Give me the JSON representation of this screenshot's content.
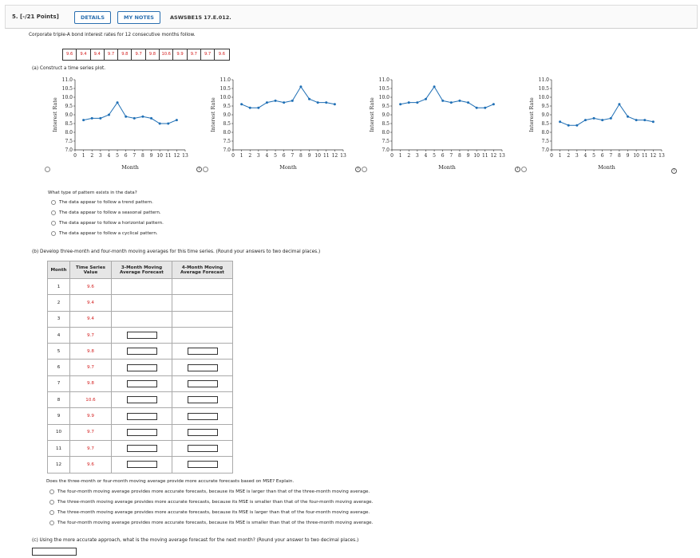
{
  "header": {
    "question_label": "5. [-/21 Points]",
    "details_label": "DETAILS",
    "notes_label": "MY NOTES",
    "code": "ASWSBE15 17.E.012."
  },
  "intro": "Corporate triple-A bond interest rates for 12 consecutive months follow.",
  "data_values": [
    "9.6",
    "9.4",
    "9.4",
    "9.7",
    "9.8",
    "9.7",
    "9.8",
    "10.6",
    "9.9",
    "9.7",
    "9.7",
    "9.6"
  ],
  "part_a": {
    "label": "(a)  Construct a time series plot.",
    "question": "What type of pattern exists in the data?",
    "options": [
      "The data appear to follow a trend pattern.",
      "The data appear to follow a seasonal pattern.",
      "The data appear to follow a horizontal pattern.",
      "The data appear to follow a cyclical pattern."
    ]
  },
  "chart_data": [
    {
      "type": "line",
      "xlabel": "Month",
      "ylabel": "Interest Rate",
      "ylim": [
        7.0,
        11.0
      ],
      "xlim": [
        0,
        13
      ],
      "yticks": [
        "7.0",
        "7.5",
        "8.0",
        "8.5",
        "9.0",
        "9.5",
        "10.0",
        "10.5",
        "11.0"
      ],
      "xticks": [
        "0",
        "1",
        "2",
        "3",
        "4",
        "5",
        "6",
        "7",
        "8",
        "9",
        "10",
        "11",
        "12",
        "13"
      ],
      "x": [
        1,
        2,
        3,
        4,
        5,
        6,
        7,
        8,
        9,
        10,
        11,
        12
      ],
      "y": [
        8.7,
        8.8,
        8.8,
        9.0,
        9.7,
        8.9,
        8.8,
        8.9,
        8.8,
        8.5,
        8.5,
        8.7
      ]
    },
    {
      "type": "line",
      "xlabel": "Month",
      "ylabel": "Interest Rate",
      "ylim": [
        7.0,
        11.0
      ],
      "xlim": [
        0,
        13
      ],
      "yticks": [
        "7.0",
        "7.5",
        "8.0",
        "8.5",
        "9.0",
        "9.5",
        "10.0",
        "10.5",
        "11.0"
      ],
      "xticks": [
        "0",
        "1",
        "2",
        "3",
        "4",
        "5",
        "6",
        "7",
        "8",
        "9",
        "10",
        "11",
        "12",
        "13"
      ],
      "x": [
        1,
        2,
        3,
        4,
        5,
        6,
        7,
        8,
        9,
        10,
        11,
        12
      ],
      "y": [
        9.6,
        9.4,
        9.4,
        9.7,
        9.8,
        9.7,
        9.8,
        10.6,
        9.9,
        9.7,
        9.7,
        9.6
      ]
    },
    {
      "type": "line",
      "xlabel": "Month",
      "ylabel": "Interest Rate",
      "ylim": [
        7.0,
        11.0
      ],
      "xlim": [
        0,
        13
      ],
      "yticks": [
        "7.0",
        "7.5",
        "8.0",
        "8.5",
        "9.0",
        "9.5",
        "10.0",
        "10.5",
        "11.0"
      ],
      "xticks": [
        "0",
        "1",
        "2",
        "3",
        "4",
        "5",
        "6",
        "7",
        "8",
        "9",
        "10",
        "11",
        "12",
        "13"
      ],
      "x": [
        1,
        2,
        3,
        4,
        5,
        6,
        7,
        8,
        9,
        10,
        11,
        12
      ],
      "y": [
        9.6,
        9.7,
        9.7,
        9.9,
        10.6,
        9.8,
        9.7,
        9.8,
        9.7,
        9.4,
        9.4,
        9.6
      ]
    },
    {
      "type": "line",
      "xlabel": "Month",
      "ylabel": "Interest Rate",
      "ylim": [
        7.0,
        11.0
      ],
      "xlim": [
        0,
        13
      ],
      "yticks": [
        "7.0",
        "7.5",
        "8.0",
        "8.5",
        "9.0",
        "9.5",
        "10.0",
        "10.5",
        "11.0"
      ],
      "xticks": [
        "0",
        "1",
        "2",
        "3",
        "4",
        "5",
        "6",
        "7",
        "8",
        "9",
        "10",
        "11",
        "12",
        "13"
      ],
      "x": [
        1,
        2,
        3,
        4,
        5,
        6,
        7,
        8,
        9,
        10,
        11,
        12
      ],
      "y": [
        8.6,
        8.4,
        8.4,
        8.7,
        8.8,
        8.7,
        8.8,
        9.6,
        8.9,
        8.7,
        8.7,
        8.6
      ]
    }
  ],
  "part_b": {
    "label": "(b)  Develop three-month and four-month moving averages for this time series. (Round your answers to two decimal places.)",
    "headers": [
      "Month",
      "Time Series Value",
      "3-Month Moving Average Forecast",
      "4-Month Moving Average Forecast"
    ],
    "months": [
      "1",
      "2",
      "3",
      "4",
      "5",
      "6",
      "7",
      "8",
      "9",
      "10",
      "11",
      "12"
    ],
    "question": "Does the three-month or four-month moving average provide more accurate forecasts based on MSE? Explain.",
    "options": [
      "The four-month moving average provides more accurate forecasts, because its MSE is larger than that of the three-month moving average.",
      "The three-month moving average provides more accurate forecasts, because its MSE is smaller than that of the four-month moving average.",
      "The three-month moving average provides more accurate forecasts, because its MSE is larger than that of the four-month moving average.",
      "The four-month moving average provides more accurate forecasts, because its MSE is smaller than that of the three-month moving average."
    ]
  },
  "part_c": {
    "label": "(c)  Using the more accurate approach, what is the moving average forecast for the next month? (Round your answer to two decimal places.)"
  }
}
